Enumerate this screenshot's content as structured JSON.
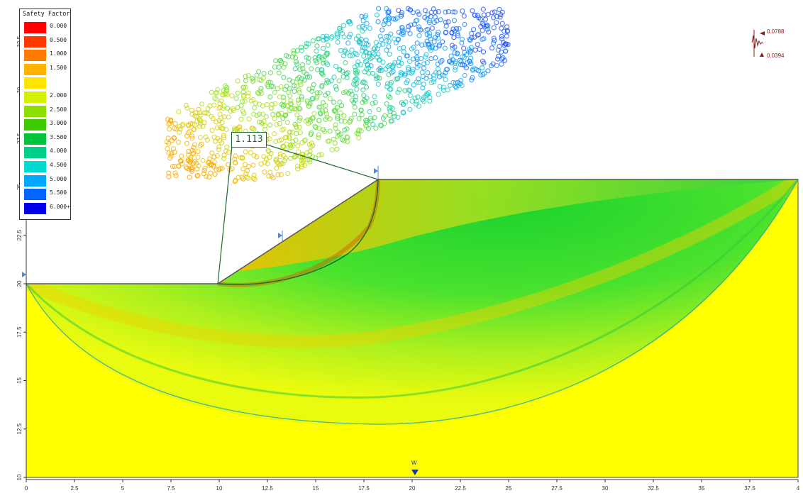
{
  "legend": {
    "title": "Safety Factor",
    "entries": [
      {
        "label": "0.000",
        "color": "#ff0000"
      },
      {
        "label": "0.500",
        "color": "#ff3a00"
      },
      {
        "label": "1.000",
        "color": "#ff7a00"
      },
      {
        "label": "1.500",
        "color": "#ffb300"
      },
      {
        "label": "",
        "color": "#ffe400"
      },
      {
        "label": "2.000",
        "color": "#d4f000"
      },
      {
        "label": "2.500",
        "color": "#8ce000"
      },
      {
        "label": "3.000",
        "color": "#3ecc00"
      },
      {
        "label": "3.500",
        "color": "#00c43c"
      },
      {
        "label": "4.000",
        "color": "#00d08a"
      },
      {
        "label": "4.500",
        "color": "#00d8d0"
      },
      {
        "label": "5.000",
        "color": "#00a8ff"
      },
      {
        "label": "5.500",
        "color": "#0066ff"
      },
      {
        "label": "6.000+",
        "color": "#0000ee"
      }
    ]
  },
  "critical_factor": "1.113",
  "seismic": {
    "upper": "0.0788",
    "lower": "0.0394"
  },
  "water_marker": "W",
  "axes": {
    "x_ticks": [
      "0",
      "2.5",
      "5",
      "7.5",
      "10",
      "12.5",
      "15",
      "17.5",
      "20",
      "22.5",
      "25",
      "27.5",
      "30",
      "32.5",
      "35",
      "37.5",
      "4"
    ],
    "y_ticks": [
      "10",
      "12.5",
      "15",
      "17.5",
      "20",
      "22.5",
      "25",
      "27.5",
      "30",
      "32.5"
    ]
  },
  "colors": {
    "soil": "#ffff00",
    "low_fs": "#ff8c00",
    "high_fs": "#22cc22",
    "axis": "#333333",
    "marker_blue": "#5588cc"
  }
}
